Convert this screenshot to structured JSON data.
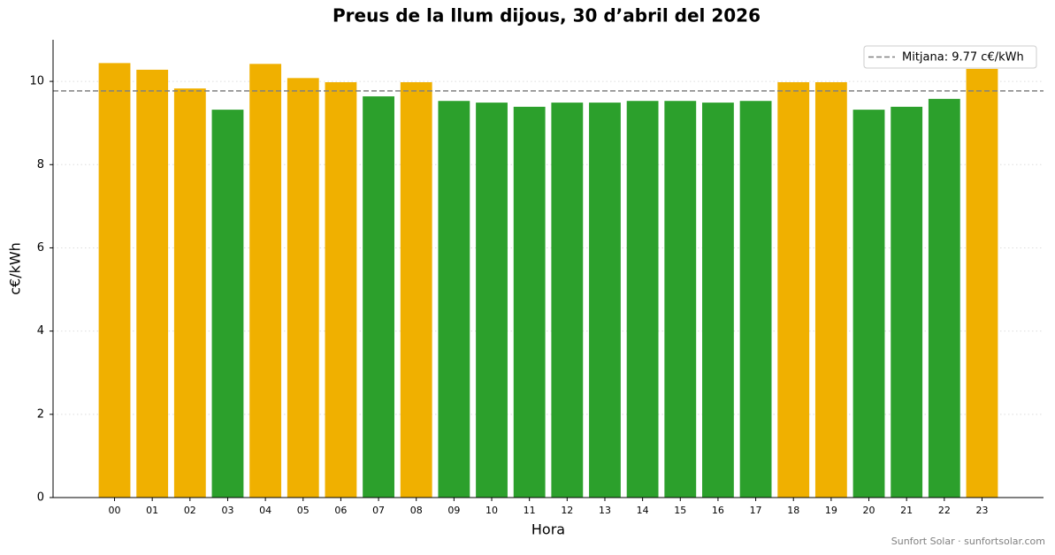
{
  "chart_data": {
    "type": "bar",
    "title": "Preus de la llum dijous, 30 d’abril del 2026",
    "x_label": "Hora",
    "y_label": "c€/kWh",
    "categories": [
      "00",
      "01",
      "02",
      "03",
      "04",
      "05",
      "06",
      "07",
      "08",
      "09",
      "10",
      "11",
      "12",
      "13",
      "14",
      "15",
      "16",
      "17",
      "18",
      "19",
      "20",
      "21",
      "22",
      "23"
    ],
    "values": [
      10.44,
      10.28,
      9.83,
      9.32,
      10.42,
      10.08,
      9.98,
      9.64,
      9.98,
      9.53,
      9.49,
      9.39,
      9.49,
      9.49,
      9.53,
      9.53,
      9.49,
      9.53,
      9.98,
      9.98,
      9.32,
      9.39,
      9.58,
      10.3
    ],
    "colors": [
      "#f0b000",
      "#f0b000",
      "#f0b000",
      "#2ca02c",
      "#f0b000",
      "#f0b000",
      "#f0b000",
      "#2ca02c",
      "#f0b000",
      "#2ca02c",
      "#2ca02c",
      "#2ca02c",
      "#2ca02c",
      "#2ca02c",
      "#2ca02c",
      "#2ca02c",
      "#2ca02c",
      "#2ca02c",
      "#f0b000",
      "#f0b000",
      "#2ca02c",
      "#2ca02c",
      "#2ca02c",
      "#f0b000"
    ],
    "mean": {
      "value": 9.77,
      "label": "Mitjana: 9.77 c€/kWh",
      "color": "#808080"
    },
    "ylim": [
      0,
      11
    ],
    "yticks": [
      0,
      2,
      4,
      6,
      8,
      10
    ],
    "grid": true,
    "legend": "upper right",
    "footer": "Sunfort Solar · sunfortsolar.com"
  }
}
